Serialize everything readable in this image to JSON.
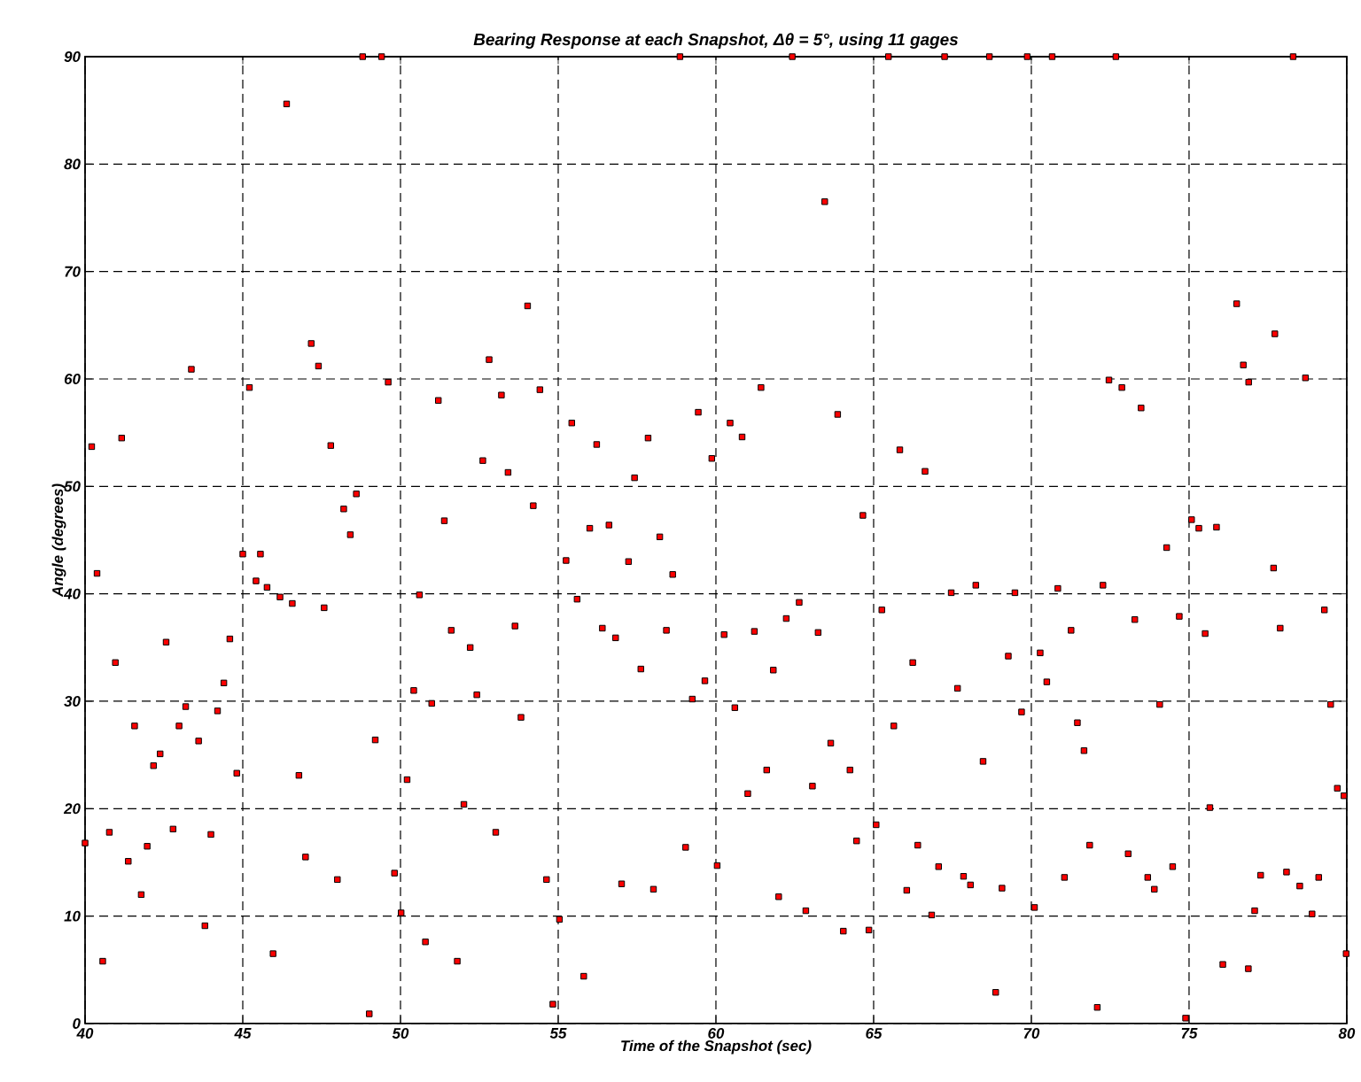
{
  "chart_data": {
    "type": "scatter",
    "title": "Bearing Response at each Snapshot, Δθ = 5°, using 11 gages",
    "xlabel": "Time of the Snapshot (sec)",
    "ylabel": "Angle (degrees)",
    "xlim": [
      40,
      80
    ],
    "ylim": [
      0,
      90
    ],
    "xticks": [
      40,
      45,
      50,
      55,
      60,
      65,
      70,
      75,
      80
    ],
    "yticks": [
      0,
      10,
      20,
      30,
      40,
      50,
      60,
      70,
      80,
      90
    ],
    "grid": true,
    "marker": "square",
    "color": "#ff0000",
    "x": [
      48.8,
      49.4,
      46.39,
      43.37,
      40.21,
      41.16,
      45.21,
      47.17,
      47.4,
      49.61,
      47.79,
      48.6,
      48.2,
      48.41,
      51.2,
      51.39,
      52.61,
      52.81,
      58.86,
      62.42,
      65.47,
      63.45,
      54.03,
      53.2,
      54.42,
      53.41,
      55.43,
      56.22,
      57.85,
      59.44,
      60.45,
      60.83,
      59.87,
      61.43,
      63.86,
      65.83,
      57.42,
      54.21,
      56.0,
      56.61,
      58.22,
      64.66,
      67.25,
      68.67,
      69.87,
      70.66,
      72.68,
      78.3,
      76.51,
      77.72,
      76.72,
      76.89,
      78.69,
      72.46,
      72.87,
      73.48,
      66.63,
      75.08,
      75.31,
      75.87,
      74.29,
      40.0,
      40.38,
      40.56,
      40.77,
      40.96,
      41.37,
      41.57,
      41.78,
      41.97,
      42.17,
      42.38,
      42.57,
      42.79,
      42.98,
      43.19,
      43.6,
      43.8,
      43.99,
      44.2,
      44.4,
      44.59,
      44.81,
      45.0,
      45.42,
      45.56,
      45.77,
      46.18,
      45.96,
      46.57,
      46.78,
      46.99,
      47.58,
      48.0,
      49.01,
      49.2,
      49.81,
      50.02,
      50.21,
      50.42,
      50.6,
      50.79,
      50.99,
      51.61,
      51.8,
      52.01,
      52.21,
      52.42,
      53.02,
      55.25,
      57.23,
      58.63,
      55.6,
      53.63,
      56.4,
      56.82,
      58.43,
      57.62,
      59.65,
      59.25,
      53.82,
      62.64,
      62.23,
      61.22,
      60.26,
      63.24,
      65.26,
      66.24,
      61.82,
      60.6,
      65.64,
      63.64,
      61.61,
      64.25,
      61.01,
      63.06,
      65.08,
      64.46,
      66.4,
      59.04,
      60.04,
      54.63,
      57.01,
      58.02,
      61.99,
      62.85,
      66.05,
      55.04,
      64.04,
      64.85,
      55.81,
      54.83,
      77.68,
      67.46,
      68.24,
      69.48,
      70.84,
      72.27,
      73.28,
      74.69,
      75.51,
      79.29,
      77.89,
      71.26,
      69.27,
      70.28,
      70.49,
      67.66,
      69.69,
      74.07,
      79.49,
      71.46,
      71.67,
      68.47,
      79.7,
      79.91,
      75.66,
      67.06,
      67.85,
      68.07,
      69.07,
      71.05,
      71.85,
      73.07,
      73.69,
      73.9,
      74.48,
      77.27,
      78.09,
      78.51,
      79.11,
      77.08,
      78.9,
      66.84,
      70.1,
      79.98,
      76.07,
      76.88,
      68.87,
      72.09,
      74.89
    ],
    "values": [
      90,
      90,
      85.6,
      60.9,
      53.7,
      54.5,
      59.2,
      63.3,
      61.2,
      59.7,
      53.8,
      49.3,
      47.9,
      45.5,
      58.0,
      46.8,
      52.4,
      61.8,
      90,
      90,
      90,
      76.5,
      66.8,
      58.5,
      59.0,
      51.3,
      55.9,
      53.9,
      54.5,
      56.9,
      55.9,
      54.6,
      52.6,
      59.2,
      56.7,
      53.4,
      50.8,
      48.2,
      46.1,
      46.4,
      45.3,
      47.3,
      90,
      90,
      90,
      90,
      90,
      90,
      67.0,
      64.2,
      61.3,
      59.7,
      60.1,
      59.9,
      59.2,
      57.3,
      51.4,
      46.9,
      46.1,
      46.2,
      44.3,
      16.8,
      41.9,
      5.8,
      17.8,
      33.6,
      15.1,
      27.7,
      12.0,
      16.5,
      24.0,
      25.1,
      35.5,
      18.1,
      27.7,
      29.5,
      26.3,
      9.1,
      17.6,
      29.1,
      31.7,
      35.8,
      23.3,
      43.7,
      41.2,
      43.7,
      40.6,
      39.7,
      6.5,
      39.1,
      23.1,
      15.5,
      38.7,
      13.4,
      0.9,
      26.4,
      14.0,
      10.3,
      22.7,
      31.0,
      39.9,
      7.6,
      29.8,
      36.6,
      5.8,
      20.4,
      35.0,
      30.6,
      17.8,
      43.1,
      43.0,
      41.8,
      39.5,
      37.0,
      36.8,
      35.9,
      36.6,
      33.0,
      31.9,
      30.2,
      28.5,
      39.2,
      37.7,
      36.5,
      36.2,
      36.4,
      38.5,
      33.6,
      32.9,
      29.4,
      27.7,
      26.1,
      23.6,
      23.6,
      21.4,
      22.1,
      18.5,
      17.0,
      16.6,
      16.4,
      14.7,
      13.4,
      13.0,
      12.5,
      11.8,
      10.5,
      12.4,
      9.7,
      8.6,
      8.7,
      4.4,
      1.8,
      42.4,
      40.1,
      40.8,
      40.1,
      40.5,
      40.8,
      37.6,
      37.9,
      36.3,
      38.5,
      36.8,
      36.6,
      34.2,
      34.5,
      31.8,
      31.2,
      29.0,
      29.7,
      29.7,
      28.0,
      25.4,
      24.4,
      21.9,
      21.2,
      20.1,
      14.6,
      13.7,
      12.9,
      12.6,
      13.6,
      16.6,
      15.8,
      13.6,
      12.5,
      14.6,
      13.8,
      14.1,
      12.8,
      13.6,
      10.5,
      10.2,
      10.1,
      10.8,
      6.5,
      5.5,
      5.1,
      2.9,
      1.5,
      0.5
    ]
  }
}
